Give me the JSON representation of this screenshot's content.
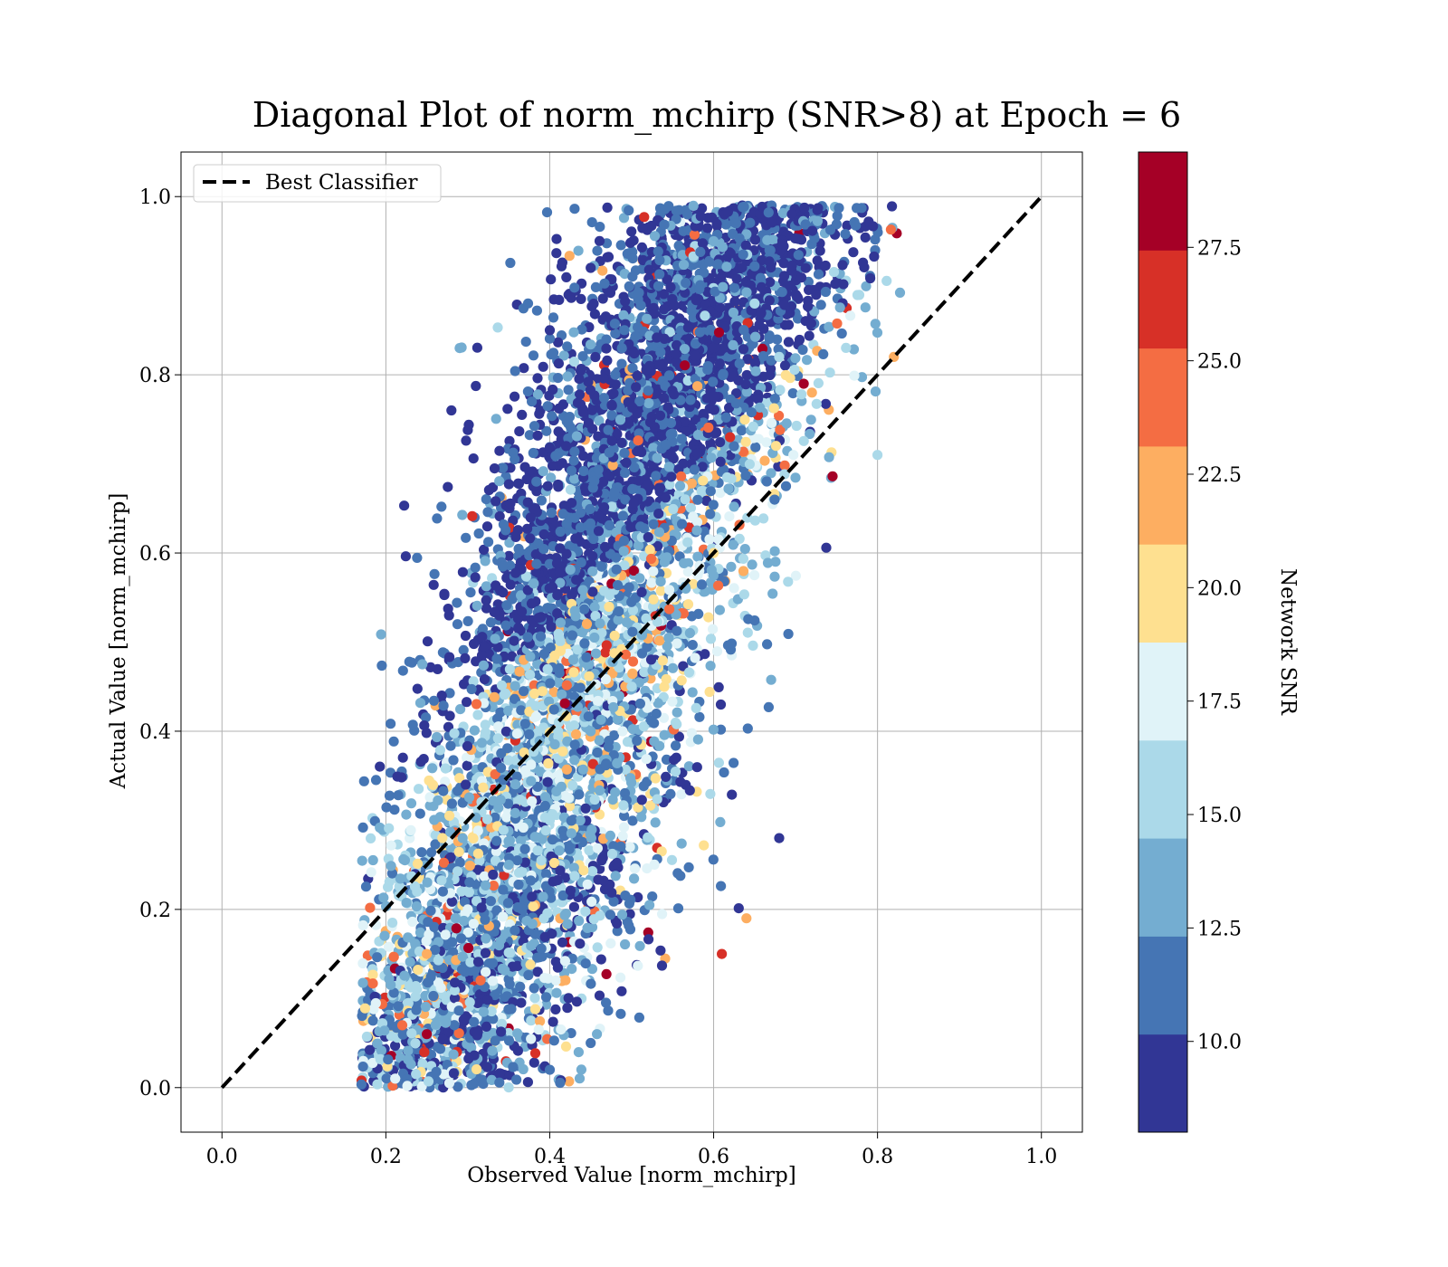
{
  "chart_data": {
    "type": "scatter",
    "title": "Diagonal Plot of norm_mchirp (SNR>8) at Epoch = 6",
    "xlabel": "Observed Value [norm_mchirp]",
    "ylabel": "Actual Value [norm_mchirp]",
    "xlim": [
      -0.05,
      1.05
    ],
    "ylim": [
      -0.05,
      1.05
    ],
    "x_ticks": [
      "0.0",
      "0.2",
      "0.4",
      "0.6",
      "0.8",
      "1.0"
    ],
    "y_ticks": [
      "0.0",
      "0.2",
      "0.4",
      "0.6",
      "0.8",
      "1.0"
    ],
    "grid": true,
    "legend": {
      "placement": "upper-left",
      "entries": [
        "Best Classifier"
      ]
    },
    "reference_line": {
      "name": "Best Classifier",
      "x": [
        0.0,
        1.0
      ],
      "y": [
        0.0,
        1.0
      ],
      "style": "dashed",
      "color": "#000000"
    },
    "colorbar": {
      "label": "Network SNR",
      "range": [
        8.0,
        29.6
      ],
      "ticks": [
        "10.0",
        "12.5",
        "15.0",
        "17.5",
        "20.0",
        "22.5",
        "25.0",
        "27.5"
      ],
      "colors": [
        "#313695",
        "#4575b4",
        "#74add1",
        "#abd9e9",
        "#e0f3f8",
        "#fee090",
        "#fdae61",
        "#f46d43",
        "#d73027",
        "#a50026"
      ]
    },
    "points_sample": [
      {
        "x": 0.45,
        "y": 0.92,
        "snr": 9.0
      },
      {
        "x": 0.4,
        "y": 0.85,
        "snr": 9.5
      },
      {
        "x": 0.48,
        "y": 0.8,
        "snr": 10.5
      },
      {
        "x": 0.42,
        "y": 0.72,
        "snr": 9.0
      },
      {
        "x": 0.38,
        "y": 0.65,
        "snr": 10.0
      },
      {
        "x": 0.6,
        "y": 0.95,
        "snr": 13.0
      },
      {
        "x": 0.65,
        "y": 0.88,
        "snr": 14.5
      },
      {
        "x": 0.68,
        "y": 0.82,
        "snr": 16.0
      },
      {
        "x": 0.72,
        "y": 0.78,
        "snr": 21.0
      },
      {
        "x": 0.71,
        "y": 0.79,
        "snr": 28.0
      },
      {
        "x": 0.62,
        "y": 0.73,
        "snr": 26.5
      },
      {
        "x": 0.6,
        "y": 0.6,
        "snr": 20.5
      },
      {
        "x": 0.55,
        "y": 0.55,
        "snr": 18.0
      },
      {
        "x": 0.5,
        "y": 0.45,
        "snr": 16.5
      },
      {
        "x": 0.45,
        "y": 0.4,
        "snr": 14.0
      },
      {
        "x": 0.4,
        "y": 0.3,
        "snr": 15.0
      },
      {
        "x": 0.35,
        "y": 0.25,
        "snr": 13.0
      },
      {
        "x": 0.3,
        "y": 0.2,
        "snr": 17.0
      },
      {
        "x": 0.25,
        "y": 0.15,
        "snr": 21.5
      },
      {
        "x": 0.25,
        "y": 0.06,
        "snr": 28.5
      },
      {
        "x": 0.22,
        "y": 0.07,
        "snr": 24.0
      },
      {
        "x": 0.45,
        "y": 0.05,
        "snr": 12.0
      },
      {
        "x": 0.4,
        "y": 0.02,
        "snr": 10.5
      },
      {
        "x": 0.68,
        "y": 0.28,
        "snr": 9.0
      },
      {
        "x": 0.64,
        "y": 0.19,
        "snr": 22.0
      },
      {
        "x": 0.61,
        "y": 0.15,
        "snr": 26.5
      },
      {
        "x": 0.82,
        "y": 0.82,
        "snr": 21.0
      },
      {
        "x": 0.8,
        "y": 0.71,
        "snr": 15.0
      },
      {
        "x": 0.28,
        "y": 0.76,
        "snr": 9.0
      },
      {
        "x": 0.29,
        "y": 0.83,
        "snr": 14.0
      }
    ]
  }
}
